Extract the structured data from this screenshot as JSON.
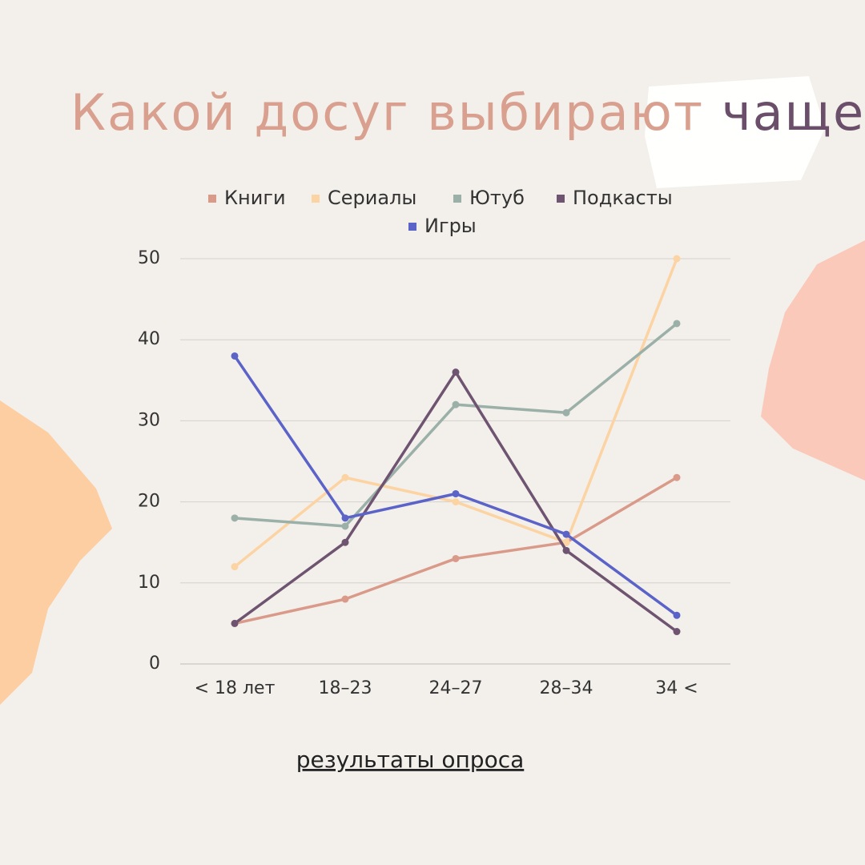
{
  "chart_data": {
    "type": "line",
    "title": "Какой досуг выбирают",
    "title_highlight": "чаще",
    "source_note": "результаты опроса",
    "categories": [
      "< 18 лет",
      "18–23",
      "24–27",
      "28–34",
      "34 <"
    ],
    "series": [
      {
        "name": "Книги",
        "color": "#d99a8a",
        "values": [
          5,
          8,
          13,
          15,
          23
        ]
      },
      {
        "name": "Сериалы",
        "color": "#fcd3a3",
        "values": [
          12,
          23,
          20,
          15,
          50
        ]
      },
      {
        "name": "Ютуб",
        "color": "#9bb0a8",
        "values": [
          18,
          17,
          32,
          31,
          42
        ]
      },
      {
        "name": "Подкасты",
        "color": "#6e5470",
        "values": [
          5,
          15,
          36,
          14,
          4
        ]
      },
      {
        "name": "Игры",
        "color": "#5b63c8",
        "values": [
          38,
          18,
          21,
          16,
          6
        ]
      }
    ],
    "ylim": [
      0,
      50
    ],
    "yticks": [
      0,
      10,
      20,
      30,
      40,
      50
    ],
    "grid": true
  }
}
